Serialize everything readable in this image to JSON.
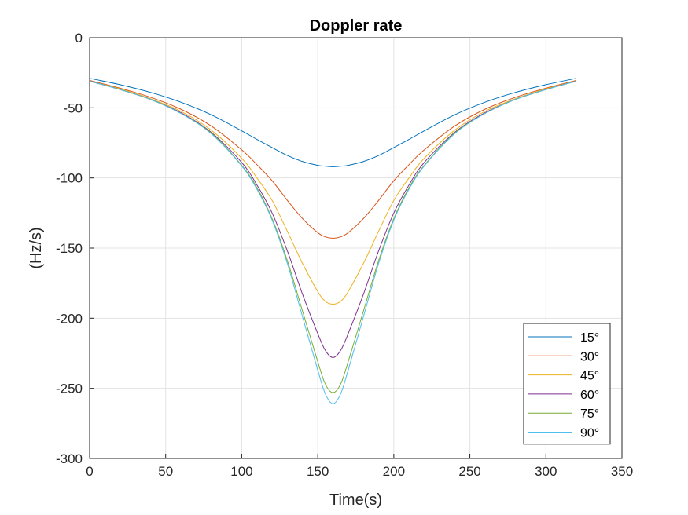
{
  "chart_data": {
    "type": "line",
    "title": "Doppler rate",
    "xlabel": "Time(s)",
    "ylabel": "(Hz/s)",
    "xlim": [
      0,
      350
    ],
    "ylim": [
      -300,
      0
    ],
    "xticks": [
      "0",
      "50",
      "100",
      "150",
      "200",
      "250",
      "300",
      "350"
    ],
    "yticks": [
      "0",
      "-50",
      "-100",
      "-150",
      "-200",
      "-250",
      "-300"
    ],
    "grid": true,
    "legend_position": "bottom-right",
    "x": [
      0,
      20,
      40,
      60,
      80,
      100,
      110,
      120,
      130,
      140,
      150,
      155,
      160,
      165,
      170,
      180,
      190,
      200,
      210,
      220,
      240,
      260,
      280,
      300,
      320
    ],
    "series": [
      {
        "name": "15°",
        "color": "#0072BD",
        "values": [
          -29,
          -33.5,
          -39,
          -46,
          -55,
          -66.4,
          -72.5,
          -78.3,
          -84,
          -88.3,
          -91,
          -91.6,
          -92,
          -91.6,
          -91,
          -88.3,
          -84,
          -78.3,
          -72.5,
          -66.4,
          -55,
          -46,
          -39,
          -33.5,
          -29
        ]
      },
      {
        "name": "30°",
        "color": "#D95319",
        "values": [
          -30.5,
          -36,
          -42.5,
          -51,
          -63,
          -80,
          -90.5,
          -102,
          -116,
          -129,
          -139,
          -142,
          -143,
          -142,
          -139,
          -129,
          -116,
          -102,
          -90.5,
          -80,
          -63,
          -51,
          -42.5,
          -36,
          -30.5
        ]
      },
      {
        "name": "45°",
        "color": "#EDB120",
        "values": [
          -31,
          -36.5,
          -43.5,
          -52.5,
          -66,
          -86,
          -100,
          -116,
          -138,
          -161,
          -181,
          -188,
          -190,
          -188,
          -181,
          -161,
          -138,
          -116,
          -100,
          -86,
          -66,
          -52.5,
          -43.5,
          -36.5,
          -31
        ]
      },
      {
        "name": "60°",
        "color": "#7E2F8E",
        "values": [
          -31,
          -37,
          -44,
          -53.5,
          -67.5,
          -89,
          -105,
          -125,
          -152,
          -183,
          -211,
          -223,
          -228,
          -223,
          -211,
          -183,
          -152,
          -125,
          -105,
          -89,
          -67.5,
          -53.5,
          -44,
          -37,
          -31
        ]
      },
      {
        "name": "75°",
        "color": "#77AC30",
        "values": [
          -31,
          -37,
          -44,
          -54,
          -68,
          -91,
          -107,
          -129,
          -159,
          -195,
          -231,
          -247,
          -253,
          -247,
          -231,
          -195,
          -159,
          -129,
          -107,
          -91,
          -68,
          -54,
          -44,
          -37,
          -31
        ]
      },
      {
        "name": "90°",
        "color": "#4DBEEE",
        "values": [
          -31,
          -37,
          -44,
          -54,
          -68.5,
          -91.5,
          -108,
          -130,
          -161,
          -199,
          -237,
          -254,
          -261,
          -254,
          -237,
          -199,
          -161,
          -130,
          -108,
          -91.5,
          -68.5,
          -54,
          -44,
          -37,
          -31
        ]
      }
    ]
  }
}
